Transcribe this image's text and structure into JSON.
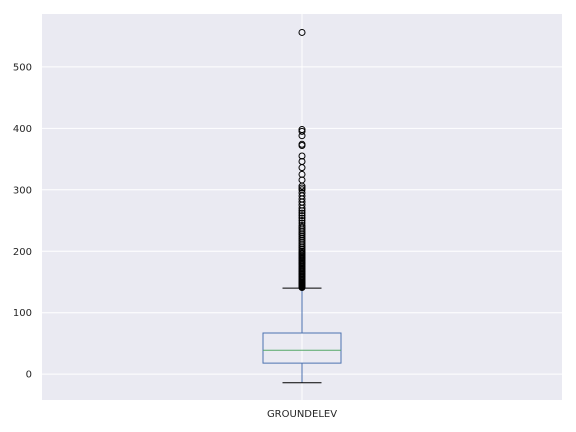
{
  "chart_data": {
    "type": "box",
    "categories": [
      "GROUNDELEV"
    ],
    "title": "",
    "xlabel": "",
    "ylabel": "",
    "ylim": [
      -42,
      586
    ],
    "yticks": [
      0,
      100,
      200,
      300,
      400,
      500
    ],
    "grid": true,
    "legend": "none",
    "boxes": [
      {
        "category": "GROUNDELEV",
        "whisker_low": -14,
        "q1": 18,
        "median": 39,
        "q3": 67,
        "whisker_high": 140,
        "outliers": [
          141,
          142,
          143,
          144,
          145,
          146,
          147,
          148,
          149,
          150,
          152,
          154,
          156,
          158,
          160,
          162,
          164,
          166,
          168,
          170,
          172,
          174,
          176,
          178,
          180,
          182,
          184,
          186,
          188,
          190,
          192,
          194,
          196,
          198,
          200,
          203,
          206,
          209,
          212,
          215,
          218,
          221,
          224,
          227,
          230,
          233,
          236,
          239,
          242,
          246,
          250,
          254,
          258,
          262,
          266,
          270,
          275,
          280,
          285,
          290,
          295,
          300,
          303,
          306,
          316,
          325,
          336,
          346,
          355,
          372,
          374,
          388,
          395,
          398,
          556
        ]
      }
    ],
    "colors": {
      "background": "#eaeaf2",
      "grid": "#ffffff",
      "box": "#4c72b0",
      "median": "#55a868",
      "flier": "#000000"
    }
  }
}
